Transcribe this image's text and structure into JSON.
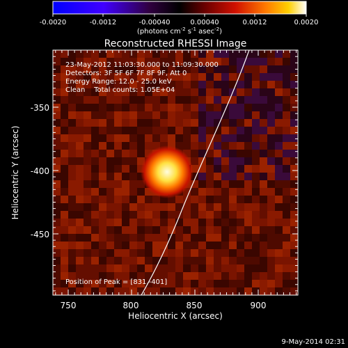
{
  "colorbar": {
    "ticks": [
      "-0.0020",
      "-0.0012",
      "-0.00040",
      "0.00040",
      "0.0012",
      "0.0020"
    ],
    "units_main": "(photons cm",
    "units_sup1": "-2",
    "units_mid": " s",
    "units_sup2": "-1",
    "units_end": " asec",
    "units_sup3": "-2",
    "units_close": ")"
  },
  "title": "Reconstructed RHESSI Image",
  "annotation": {
    "line1": "23-May-2012 11:03:30.000 to 11:09:30.000",
    "line2": "Detectors: 3F 5F 6F 7F 8F 9F, Att 0",
    "line3": "Energy Range: 12.0 - 25.0 keV",
    "line4": "Clean    Total counts: 1.05E+04",
    "peak": "Position of Peak = [831,-401]"
  },
  "axes": {
    "xlabel": "Heliocentric X (arcsec)",
    "ylabel": "Heliocentric Y (arcsec)",
    "xticks": [
      "750",
      "800",
      "850",
      "900"
    ],
    "yticks": [
      "-350",
      "-400",
      "-450"
    ]
  },
  "footer": {
    "timestamp": "9-May-2014 02:31"
  }
}
